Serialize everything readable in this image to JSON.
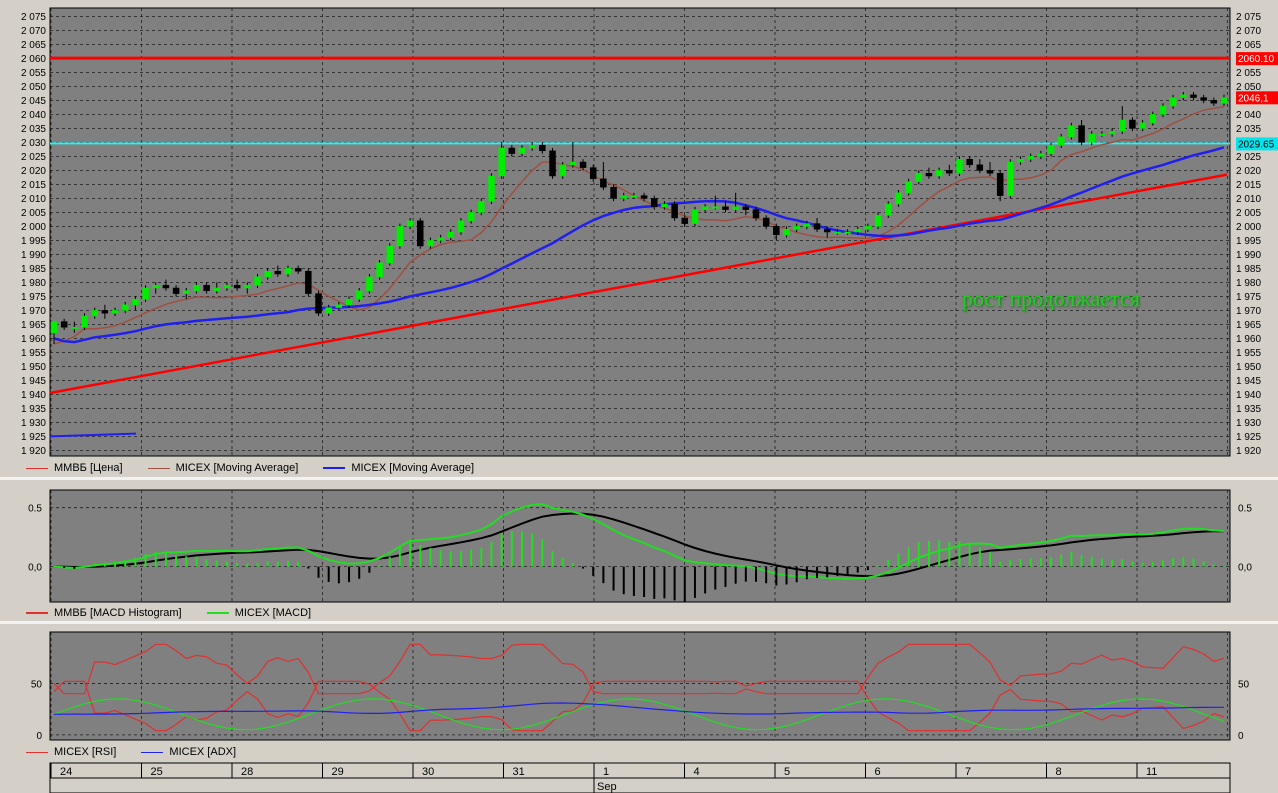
{
  "chart_data": [
    {
      "type": "candlestick",
      "panel": "price",
      "ylim": [
        1918,
        2078
      ],
      "y_ticks": [
        "2 075",
        "2 070",
        "2 065",
        "2 060",
        "2 055",
        "2 050",
        "2 045",
        "2 040",
        "2 035",
        "2 030",
        "2 025",
        "2 020",
        "2 015",
        "2 010",
        "2 005",
        "2 000",
        "1 995",
        "1 990",
        "1 985",
        "1 980",
        "1 975",
        "1 970",
        "1 965",
        "1 960",
        "1 955",
        "1 950",
        "1 945",
        "1 940",
        "1 935",
        "1 930",
        "1 925",
        "1 920"
      ],
      "price_labels": [
        {
          "text": "2060.10",
          "value": 2060.1,
          "color": "#ff0000"
        },
        {
          "text": "2046,1",
          "value": 2046.1,
          "color": "#ff0000"
        },
        {
          "text": "2029.65",
          "value": 2029.65,
          "color": "#00e5ee"
        }
      ],
      "horizontal_levels": [
        {
          "value": 2060.1,
          "color": "#ff0000"
        },
        {
          "value": 2029.65,
          "color": "#33eeee"
        }
      ],
      "trend_line": {
        "from": [
          0,
          1940.5
        ],
        "to": [
          140,
          2018.5
        ],
        "color": "#ff0000"
      },
      "candles": [
        [
          1962,
          1966,
          1958,
          1966
        ],
        [
          1966,
          1967,
          1963,
          1964
        ],
        [
          1964,
          1966,
          1962,
          1964
        ],
        [
          1964,
          1969,
          1963,
          1968
        ],
        [
          1968,
          1971,
          1967,
          1970
        ],
        [
          1970,
          1972,
          1967,
          1969
        ],
        [
          1969,
          1971,
          1968,
          1970
        ],
        [
          1970,
          1973,
          1969,
          1972
        ],
        [
          1972,
          1975,
          1970,
          1974
        ],
        [
          1974,
          1979,
          1973,
          1978
        ],
        [
          1978,
          1980,
          1976,
          1979
        ],
        [
          1979,
          1981,
          1977,
          1978
        ],
        [
          1978,
          1979,
          1975,
          1976
        ],
        [
          1976,
          1978,
          1974,
          1977
        ],
        [
          1977,
          1980,
          1976,
          1979
        ],
        [
          1979,
          1980,
          1976,
          1977
        ],
        [
          1977,
          1980,
          1976,
          1978
        ],
        [
          1978,
          1980,
          1977,
          1979
        ],
        [
          1979,
          1981,
          1977,
          1978
        ],
        [
          1978,
          1980,
          1976,
          1979
        ],
        [
          1979,
          1983,
          1978,
          1982
        ],
        [
          1982,
          1985,
          1981,
          1984
        ],
        [
          1984,
          1986,
          1982,
          1983
        ],
        [
          1983,
          1986,
          1982,
          1985
        ],
        [
          1985,
          1986,
          1983,
          1984
        ],
        [
          1984,
          1985,
          1975,
          1976
        ],
        [
          1976,
          1977,
          1968,
          1969
        ],
        [
          1969,
          1972,
          1968,
          1971
        ],
        [
          1971,
          1973,
          1970,
          1972
        ],
        [
          1972,
          1975,
          1971,
          1974
        ],
        [
          1974,
          1978,
          1973,
          1977
        ],
        [
          1977,
          1983,
          1976,
          1982
        ],
        [
          1982,
          1988,
          1981,
          1987
        ],
        [
          1987,
          1994,
          1986,
          1993
        ],
        [
          1993,
          2001,
          1992,
          2000
        ],
        [
          2000,
          2003,
          1999,
          2002
        ],
        [
          2002,
          2003,
          1992,
          1993
        ],
        [
          1993,
          1996,
          1992,
          1995
        ],
        [
          1995,
          1997,
          1994,
          1996
        ],
        [
          1996,
          1999,
          1995,
          1998
        ],
        [
          1998,
          2003,
          1997,
          2002
        ],
        [
          2002,
          2006,
          2001,
          2005
        ],
        [
          2005,
          2010,
          2004,
          2009
        ],
        [
          2009,
          2019,
          2008,
          2018
        ],
        [
          2018,
          2030,
          2017,
          2028
        ],
        [
          2028,
          2029,
          2025,
          2026
        ],
        [
          2026,
          2029,
          2025,
          2028
        ],
        [
          2028,
          2030,
          2027,
          2029
        ],
        [
          2029,
          2030,
          2026,
          2027
        ],
        [
          2027,
          2028,
          2017,
          2018
        ],
        [
          2018,
          2023,
          2017,
          2022
        ],
        [
          2022,
          2030,
          2021,
          2023
        ],
        [
          2023,
          2024,
          2020,
          2021
        ],
        [
          2021,
          2022,
          2016,
          2017
        ],
        [
          2017,
          2023,
          2013,
          2014
        ],
        [
          2014,
          2015,
          2009,
          2010
        ],
        [
          2010,
          2012,
          2009,
          2011
        ],
        [
          2011,
          2012,
          2010,
          2011
        ],
        [
          2011,
          2012,
          2009,
          2010
        ],
        [
          2010,
          2011,
          2006,
          2007
        ],
        [
          2007,
          2009,
          2006,
          2008
        ],
        [
          2008,
          2009,
          2002,
          2003
        ],
        [
          2003,
          2004,
          2000,
          2001
        ],
        [
          2001,
          2007,
          2000,
          2006
        ],
        [
          2006,
          2008,
          2005,
          2007
        ],
        [
          2007,
          2011,
          2006,
          2007
        ],
        [
          2007,
          2009,
          2005,
          2006
        ],
        [
          2006,
          2012,
          2005,
          2007
        ],
        [
          2007,
          2008,
          2004,
          2006
        ],
        [
          2006,
          2007,
          2002,
          2003
        ],
        [
          2003,
          2004,
          1999,
          2000
        ],
        [
          2000,
          2001,
          1995,
          1997
        ],
        [
          1997,
          2000,
          1996,
          1999
        ],
        [
          1999,
          2001,
          1998,
          2000
        ],
        [
          2000,
          2002,
          1999,
          2001
        ],
        [
          2001,
          2003,
          1998,
          1999
        ],
        [
          1999,
          2000,
          1996,
          1998
        ],
        [
          1998,
          1999,
          1997,
          1998
        ],
        [
          1998,
          1999,
          1997,
          1998
        ],
        [
          1998,
          2000,
          1997,
          1999
        ],
        [
          1999,
          2001,
          1998,
          2000
        ],
        [
          2000,
          2005,
          1999,
          2004
        ],
        [
          2004,
          2009,
          2003,
          2008
        ],
        [
          2008,
          2013,
          2007,
          2012
        ],
        [
          2012,
          2017,
          2011,
          2016
        ],
        [
          2016,
          2020,
          2015,
          2019
        ],
        [
          2019,
          2021,
          2017,
          2018
        ],
        [
          2018,
          2021,
          2017,
          2020
        ],
        [
          2020,
          2022,
          2018,
          2019
        ],
        [
          2019,
          2025,
          2018,
          2024
        ],
        [
          2024,
          2025,
          2021,
          2022
        ],
        [
          2022,
          2024,
          2019,
          2020
        ],
        [
          2020,
          2023,
          2018,
          2019
        ],
        [
          2019,
          2020,
          2009,
          2011
        ],
        [
          2011,
          2024,
          2010,
          2023
        ],
        [
          2023,
          2025,
          2022,
          2024
        ],
        [
          2024,
          2026,
          2023,
          2025
        ],
        [
          2025,
          2027,
          2024,
          2026
        ],
        [
          2026,
          2030,
          2025,
          2029
        ],
        [
          2029,
          2033,
          2028,
          2032
        ],
        [
          2032,
          2037,
          2031,
          2036
        ],
        [
          2036,
          2038,
          2029,
          2030
        ],
        [
          2030,
          2034,
          2029,
          2033
        ],
        [
          2033,
          2034,
          2032,
          2033
        ],
        [
          2033,
          2035,
          2032,
          2034
        ],
        [
          2034,
          2043,
          2033,
          2038
        ],
        [
          2038,
          2039,
          2034,
          2035
        ],
        [
          2035,
          2038,
          2034,
          2037
        ],
        [
          2037,
          2041,
          2036,
          2040
        ],
        [
          2040,
          2044,
          2039,
          2043
        ],
        [
          2043,
          2047,
          2042,
          2046
        ],
        [
          2046,
          2048,
          2045,
          2047
        ],
        [
          2047,
          2048,
          2045,
          2046
        ],
        [
          2046,
          2047,
          2044,
          2045
        ],
        [
          2045,
          2046,
          2043,
          2044
        ],
        [
          2044,
          2047,
          2043,
          2046
        ]
      ],
      "series": [
        {
          "name": "ММВБ [Цена]",
          "color": "#e03030"
        },
        {
          "name": "MICEX [Moving Average]",
          "color": "#a05040"
        },
        {
          "name": "MICEX [Moving Average]",
          "color": "#2020ee"
        }
      ],
      "annotation": "рост продолжается",
      "x_tick_labels": [
        "24",
        "25",
        "28",
        "29",
        "30",
        "31",
        "1",
        "4",
        "5",
        "6",
        "7",
        "8",
        "11"
      ],
      "x_month_label": "Sep"
    },
    {
      "type": "line",
      "panel": "macd",
      "y_ticks": [
        "0.5",
        "0,0"
      ],
      "ylim": [
        -0.3,
        0.65
      ],
      "series": [
        {
          "name": "ММВБ [MACD Histogram]",
          "color": "#e03030"
        },
        {
          "name": "MICEX [MACD]",
          "color": "#22dd22"
        }
      ]
    },
    {
      "type": "line",
      "panel": "rsi_adx",
      "y_ticks": [
        "50",
        "0"
      ],
      "ylim": [
        -5,
        100
      ],
      "series": [
        {
          "name": "MICEX [RSI]",
          "color": "#e03030"
        },
        {
          "name": "MICEX [ADX]",
          "color": "#2020ee"
        }
      ]
    }
  ]
}
